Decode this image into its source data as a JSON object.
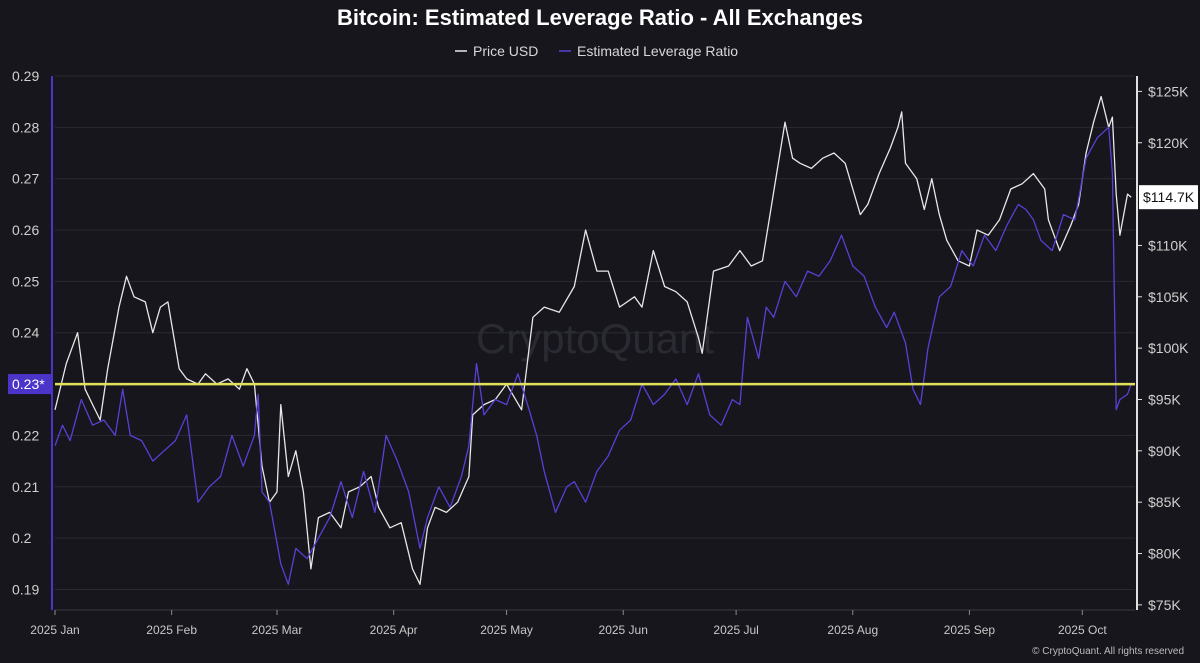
{
  "chart_data": {
    "type": "line",
    "title": "Bitcoin: Estimated Leverage Ratio - All Exchanges",
    "legend": {
      "placement": "top-center",
      "entries": [
        {
          "name": "Price USD",
          "color": "#e8e8e8"
        },
        {
          "name": "Estimated Leverage Ratio",
          "color": "#5b3fd6"
        }
      ]
    },
    "x_range": [
      "2025-01-01",
      "2025-10-15"
    ],
    "x_ticks": [
      {
        "date": "2025-01-01",
        "label": "2025 Jan"
      },
      {
        "date": "2025-02-01",
        "label": "2025 Feb"
      },
      {
        "date": "2025-03-01",
        "label": "2025 Mar"
      },
      {
        "date": "2025-04-01",
        "label": "2025 Apr"
      },
      {
        "date": "2025-05-01",
        "label": "2025 May"
      },
      {
        "date": "2025-06-01",
        "label": "2025 Jun"
      },
      {
        "date": "2025-07-01",
        "label": "2025 Jul"
      },
      {
        "date": "2025-08-01",
        "label": "2025 Aug"
      },
      {
        "date": "2025-09-01",
        "label": "2025 Sep"
      },
      {
        "date": "2025-10-01",
        "label": "2025 Oct"
      }
    ],
    "y_left": {
      "range": [
        0.186,
        0.29
      ],
      "ticks": [
        0.19,
        0.2,
        0.21,
        0.22,
        0.23,
        0.24,
        0.25,
        0.26,
        0.27,
        0.28,
        0.29
      ],
      "tick_labels": [
        "0.19",
        "0.2",
        "0.21",
        "0.22",
        "0.23",
        "0.24",
        "0.25",
        "0.26",
        "0.27",
        "0.28",
        "0.29"
      ]
    },
    "y_right": {
      "range": [
        74500,
        126500
      ],
      "ticks": [
        75000,
        80000,
        85000,
        90000,
        95000,
        100000,
        105000,
        110000,
        115000,
        120000,
        125000
      ],
      "tick_labels": [
        "$75K",
        "$80K",
        "$85K",
        "$90K",
        "$95K",
        "$100K",
        "$105K",
        "$110K",
        "$115K",
        "$120K",
        "$125K"
      ]
    },
    "grid": true,
    "series": [
      {
        "name": "Price USD",
        "axis": "right",
        "color": "#e8e8e8",
        "points": [
          [
            "2025-01-01",
            94000
          ],
          [
            "2025-01-04",
            98500
          ],
          [
            "2025-01-07",
            101500
          ],
          [
            "2025-01-09",
            96000
          ],
          [
            "2025-01-11",
            94500
          ],
          [
            "2025-01-13",
            93000
          ],
          [
            "2025-01-15",
            98000
          ],
          [
            "2025-01-18",
            104000
          ],
          [
            "2025-01-20",
            107000
          ],
          [
            "2025-01-22",
            105000
          ],
          [
            "2025-01-25",
            104500
          ],
          [
            "2025-01-27",
            101500
          ],
          [
            "2025-01-29",
            104000
          ],
          [
            "2025-01-31",
            104500
          ],
          [
            "2025-02-03",
            98000
          ],
          [
            "2025-02-05",
            97000
          ],
          [
            "2025-02-08",
            96500
          ],
          [
            "2025-02-10",
            97500
          ],
          [
            "2025-02-13",
            96500
          ],
          [
            "2025-02-16",
            97000
          ],
          [
            "2025-02-19",
            96000
          ],
          [
            "2025-02-21",
            98000
          ],
          [
            "2025-02-23",
            96500
          ],
          [
            "2025-02-25",
            88500
          ],
          [
            "2025-02-27",
            85000
          ],
          [
            "2025-03-01",
            86000
          ],
          [
            "2025-03-02",
            94500
          ],
          [
            "2025-03-04",
            87500
          ],
          [
            "2025-03-06",
            90000
          ],
          [
            "2025-03-08",
            86000
          ],
          [
            "2025-03-10",
            78500
          ],
          [
            "2025-03-12",
            83500
          ],
          [
            "2025-03-15",
            84000
          ],
          [
            "2025-03-18",
            82500
          ],
          [
            "2025-03-20",
            86000
          ],
          [
            "2025-03-23",
            86500
          ],
          [
            "2025-03-26",
            87500
          ],
          [
            "2025-03-28",
            84500
          ],
          [
            "2025-03-31",
            82500
          ],
          [
            "2025-04-03",
            83000
          ],
          [
            "2025-04-06",
            78500
          ],
          [
            "2025-04-08",
            77000
          ],
          [
            "2025-04-10",
            82500
          ],
          [
            "2025-04-12",
            84500
          ],
          [
            "2025-04-15",
            84000
          ],
          [
            "2025-04-18",
            85000
          ],
          [
            "2025-04-21",
            87500
          ],
          [
            "2025-04-22",
            93500
          ],
          [
            "2025-04-25",
            94500
          ],
          [
            "2025-04-28",
            95000
          ],
          [
            "2025-05-01",
            96500
          ],
          [
            "2025-05-05",
            94000
          ],
          [
            "2025-05-08",
            103000
          ],
          [
            "2025-05-11",
            104000
          ],
          [
            "2025-05-15",
            103500
          ],
          [
            "2025-05-19",
            106000
          ],
          [
            "2025-05-22",
            111500
          ],
          [
            "2025-05-25",
            107500
          ],
          [
            "2025-05-28",
            107500
          ],
          [
            "2025-05-31",
            104000
          ],
          [
            "2025-06-04",
            105000
          ],
          [
            "2025-06-06",
            104000
          ],
          [
            "2025-06-09",
            109500
          ],
          [
            "2025-06-12",
            106000
          ],
          [
            "2025-06-15",
            105500
          ],
          [
            "2025-06-18",
            104500
          ],
          [
            "2025-06-21",
            101000
          ],
          [
            "2025-06-22",
            99500
          ],
          [
            "2025-06-25",
            107500
          ],
          [
            "2025-06-29",
            108000
          ],
          [
            "2025-07-02",
            109500
          ],
          [
            "2025-07-05",
            108000
          ],
          [
            "2025-07-08",
            108500
          ],
          [
            "2025-07-10",
            113000
          ],
          [
            "2025-07-12",
            117500
          ],
          [
            "2025-07-14",
            122000
          ],
          [
            "2025-07-16",
            118500
          ],
          [
            "2025-07-18",
            118000
          ],
          [
            "2025-07-21",
            117500
          ],
          [
            "2025-07-24",
            118500
          ],
          [
            "2025-07-27",
            119000
          ],
          [
            "2025-07-30",
            118000
          ],
          [
            "2025-08-01",
            115500
          ],
          [
            "2025-08-03",
            113000
          ],
          [
            "2025-08-05",
            114000
          ],
          [
            "2025-08-08",
            117000
          ],
          [
            "2025-08-11",
            119500
          ],
          [
            "2025-08-13",
            121500
          ],
          [
            "2025-08-14",
            123000
          ],
          [
            "2025-08-15",
            118000
          ],
          [
            "2025-08-18",
            116500
          ],
          [
            "2025-08-20",
            113500
          ],
          [
            "2025-08-22",
            116500
          ],
          [
            "2025-08-24",
            113000
          ],
          [
            "2025-08-26",
            110500
          ],
          [
            "2025-08-29",
            108500
          ],
          [
            "2025-09-01",
            108000
          ],
          [
            "2025-09-03",
            111500
          ],
          [
            "2025-09-06",
            111000
          ],
          [
            "2025-09-09",
            112500
          ],
          [
            "2025-09-12",
            115500
          ],
          [
            "2025-09-15",
            116000
          ],
          [
            "2025-09-18",
            117000
          ],
          [
            "2025-09-21",
            115500
          ],
          [
            "2025-09-22",
            112500
          ],
          [
            "2025-09-25",
            109500
          ],
          [
            "2025-09-28",
            112000
          ],
          [
            "2025-09-30",
            114000
          ],
          [
            "2025-10-02",
            119000
          ],
          [
            "2025-10-04",
            122000
          ],
          [
            "2025-10-06",
            124500
          ],
          [
            "2025-10-08",
            121500
          ],
          [
            "2025-10-09",
            122500
          ],
          [
            "2025-10-10",
            115000
          ],
          [
            "2025-10-11",
            111000
          ],
          [
            "2025-10-13",
            115000
          ],
          [
            "2025-10-14",
            114700
          ]
        ]
      },
      {
        "name": "Estimated Leverage Ratio",
        "axis": "left",
        "color": "#5b3fd6",
        "points": [
          [
            "2025-01-01",
            0.218
          ],
          [
            "2025-01-03",
            0.222
          ],
          [
            "2025-01-05",
            0.219
          ],
          [
            "2025-01-08",
            0.227
          ],
          [
            "2025-01-11",
            0.222
          ],
          [
            "2025-01-14",
            0.223
          ],
          [
            "2025-01-17",
            0.22
          ],
          [
            "2025-01-19",
            0.229
          ],
          [
            "2025-01-21",
            0.22
          ],
          [
            "2025-01-24",
            0.219
          ],
          [
            "2025-01-27",
            0.215
          ],
          [
            "2025-01-30",
            0.217
          ],
          [
            "2025-02-02",
            0.219
          ],
          [
            "2025-02-05",
            0.224
          ],
          [
            "2025-02-08",
            0.207
          ],
          [
            "2025-02-11",
            0.21
          ],
          [
            "2025-02-14",
            0.212
          ],
          [
            "2025-02-17",
            0.22
          ],
          [
            "2025-02-20",
            0.214
          ],
          [
            "2025-02-23",
            0.22
          ],
          [
            "2025-02-24",
            0.228
          ],
          [
            "2025-02-25",
            0.209
          ],
          [
            "2025-02-27",
            0.207
          ],
          [
            "2025-03-02",
            0.195
          ],
          [
            "2025-03-04",
            0.191
          ],
          [
            "2025-03-06",
            0.198
          ],
          [
            "2025-03-09",
            0.196
          ],
          [
            "2025-03-12",
            0.2
          ],
          [
            "2025-03-15",
            0.204
          ],
          [
            "2025-03-18",
            0.211
          ],
          [
            "2025-03-21",
            0.204
          ],
          [
            "2025-03-24",
            0.213
          ],
          [
            "2025-03-27",
            0.205
          ],
          [
            "2025-03-30",
            0.22
          ],
          [
            "2025-04-02",
            0.215
          ],
          [
            "2025-04-05",
            0.209
          ],
          [
            "2025-04-08",
            0.198
          ],
          [
            "2025-04-10",
            0.204
          ],
          [
            "2025-04-13",
            0.21
          ],
          [
            "2025-04-16",
            0.206
          ],
          [
            "2025-04-19",
            0.212
          ],
          [
            "2025-04-21",
            0.218
          ],
          [
            "2025-04-23",
            0.234
          ],
          [
            "2025-04-25",
            0.224
          ],
          [
            "2025-04-28",
            0.227
          ],
          [
            "2025-05-01",
            0.226
          ],
          [
            "2025-05-04",
            0.232
          ],
          [
            "2025-05-07",
            0.225
          ],
          [
            "2025-05-09",
            0.22
          ],
          [
            "2025-05-11",
            0.213
          ],
          [
            "2025-05-14",
            0.205
          ],
          [
            "2025-05-17",
            0.21
          ],
          [
            "2025-05-19",
            0.211
          ],
          [
            "2025-05-22",
            0.207
          ],
          [
            "2025-05-25",
            0.213
          ],
          [
            "2025-05-28",
            0.216
          ],
          [
            "2025-05-31",
            0.221
          ],
          [
            "2025-06-03",
            0.223
          ],
          [
            "2025-06-06",
            0.23
          ],
          [
            "2025-06-09",
            0.226
          ],
          [
            "2025-06-12",
            0.228
          ],
          [
            "2025-06-15",
            0.231
          ],
          [
            "2025-06-18",
            0.226
          ],
          [
            "2025-06-21",
            0.232
          ],
          [
            "2025-06-24",
            0.224
          ],
          [
            "2025-06-27",
            0.222
          ],
          [
            "2025-06-30",
            0.227
          ],
          [
            "2025-07-02",
            0.226
          ],
          [
            "2025-07-04",
            0.243
          ],
          [
            "2025-07-07",
            0.235
          ],
          [
            "2025-07-09",
            0.245
          ],
          [
            "2025-07-11",
            0.243
          ],
          [
            "2025-07-14",
            0.25
          ],
          [
            "2025-07-17",
            0.247
          ],
          [
            "2025-07-20",
            0.252
          ],
          [
            "2025-07-23",
            0.251
          ],
          [
            "2025-07-26",
            0.254
          ],
          [
            "2025-07-29",
            0.259
          ],
          [
            "2025-08-01",
            0.253
          ],
          [
            "2025-08-04",
            0.251
          ],
          [
            "2025-08-07",
            0.245
          ],
          [
            "2025-08-10",
            0.241
          ],
          [
            "2025-08-12",
            0.244
          ],
          [
            "2025-08-15",
            0.238
          ],
          [
            "2025-08-17",
            0.229
          ],
          [
            "2025-08-19",
            0.226
          ],
          [
            "2025-08-21",
            0.237
          ],
          [
            "2025-08-24",
            0.247
          ],
          [
            "2025-08-27",
            0.249
          ],
          [
            "2025-08-30",
            0.256
          ],
          [
            "2025-09-02",
            0.253
          ],
          [
            "2025-09-05",
            0.259
          ],
          [
            "2025-09-08",
            0.256
          ],
          [
            "2025-09-11",
            0.261
          ],
          [
            "2025-09-14",
            0.265
          ],
          [
            "2025-09-16",
            0.264
          ],
          [
            "2025-09-18",
            0.262
          ],
          [
            "2025-09-20",
            0.258
          ],
          [
            "2025-09-23",
            0.256
          ],
          [
            "2025-09-26",
            0.263
          ],
          [
            "2025-09-29",
            0.262
          ],
          [
            "2025-10-02",
            0.274
          ],
          [
            "2025-10-05",
            0.278
          ],
          [
            "2025-10-08",
            0.28
          ],
          [
            "2025-10-09",
            0.271
          ],
          [
            "2025-10-10",
            0.225
          ],
          [
            "2025-10-11",
            0.227
          ],
          [
            "2025-10-13",
            0.228
          ],
          [
            "2025-10-14",
            0.23
          ]
        ]
      }
    ],
    "reference_line": {
      "axis": "left",
      "value": 0.23,
      "color": "#e2e25a",
      "label": "0.23*",
      "label_bg": "#4a34c9"
    },
    "last_price_marker": {
      "value": 114700,
      "label": "$114.7K"
    },
    "watermark": "CryptoQuant",
    "credit": "© CryptoQuant. All rights reserved"
  }
}
